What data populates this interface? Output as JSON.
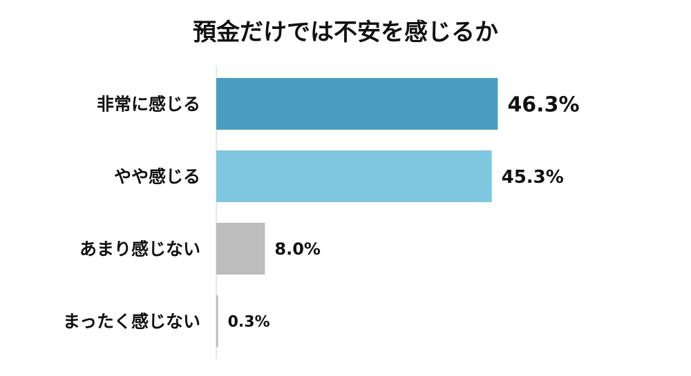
{
  "chart_data": {
    "type": "bar",
    "orientation": "horizontal",
    "title": "預金だけでは不安を感じるか",
    "categories": [
      "非常に感じる",
      "やや感じる",
      "あまり感じない",
      "まったく感じない"
    ],
    "values": [
      46.3,
      45.3,
      8.0,
      0.3
    ],
    "value_labels": [
      "46.3%",
      "45.3%",
      "8.0%",
      "0.3%"
    ],
    "colors": [
      "#4a9dbf",
      "#7fc6e0",
      "#bdbdbd",
      "#bdbdbd"
    ],
    "xlim": [
      0,
      50
    ],
    "grid": false,
    "legend": "none"
  }
}
